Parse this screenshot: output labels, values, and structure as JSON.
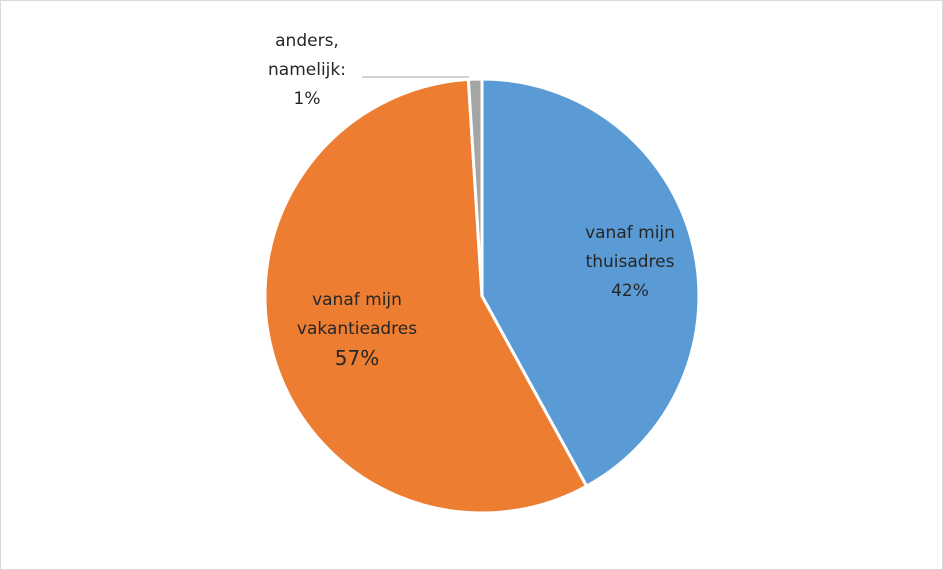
{
  "chart_data": {
    "type": "pie",
    "categories": [
      "vanaf mijn thuisadres",
      "vanaf mijn vakantieadres",
      "anders, namelijk:"
    ],
    "values": [
      42,
      57,
      1
    ],
    "value_labels": [
      "42%",
      "57%",
      "1%"
    ],
    "colors": [
      "#5b9bd5",
      "#ed7d31",
      "#a5a5a5"
    ]
  }
}
